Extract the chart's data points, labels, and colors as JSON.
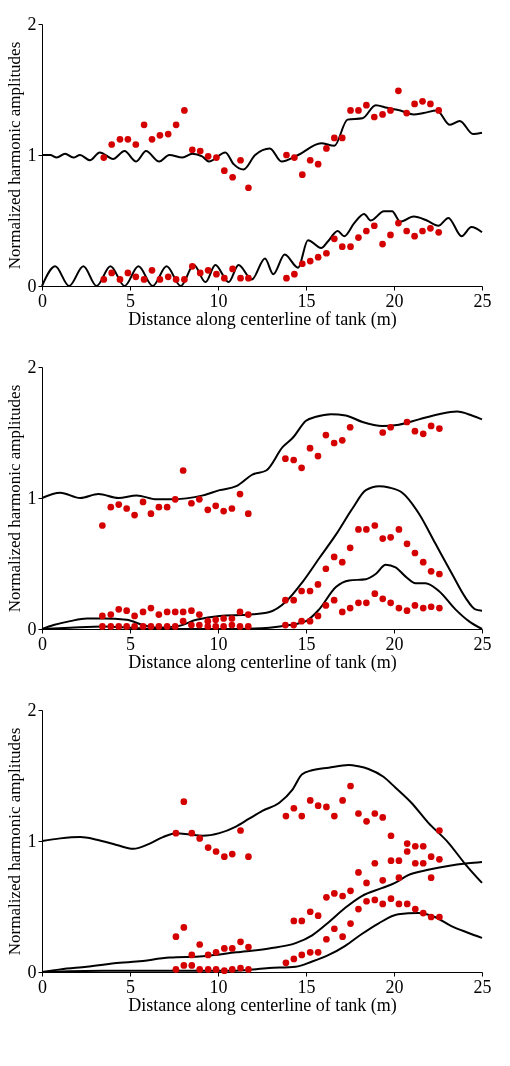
{
  "chart_data": [
    {
      "type": "line",
      "xlabel": "Distance along centerline of tank (m)",
      "ylabel": "Normalized harmonic amplitudes",
      "xlim": [
        0,
        25
      ],
      "ylim": [
        0,
        2
      ],
      "xticks": [
        0,
        5,
        10,
        15,
        20,
        25
      ],
      "yticks": [
        0,
        1,
        2
      ],
      "grid": false,
      "series": [
        {
          "type": "line",
          "color": "#000000",
          "x": [
            0,
            0.47,
            0.84,
            1.31,
            1.78,
            2.16,
            2.72,
            3.28,
            4.04,
            4.69,
            5.35,
            5.91,
            6.66,
            7.23,
            7.98,
            8.54,
            9.1,
            9.48,
            10.42,
            10.89,
            11.45,
            12.11,
            12.95,
            13.61,
            14.55,
            15.86,
            16.61,
            17.36,
            18.21,
            18.96,
            19.61,
            20.36,
            21.11,
            21.68,
            22.43,
            23.18,
            23.74,
            24.49,
            25
          ],
          "values": [
            1.0,
            1.0,
            0.98,
            1.01,
            0.98,
            1.0,
            0.96,
            1.02,
            0.97,
            1.03,
            0.95,
            1.03,
            0.95,
            1.0,
            0.98,
            1.01,
            0.99,
            0.95,
            1.02,
            0.93,
            0.89,
            1.0,
            1.05,
            0.95,
            1.0,
            1.09,
            1.07,
            1.27,
            1.28,
            1.38,
            1.36,
            1.34,
            1.31,
            1.32,
            1.34,
            1.23,
            1.26,
            1.16,
            1.17
          ]
        },
        {
          "type": "line",
          "color": "#000000",
          "x": [
            0,
            0.75,
            1.54,
            2.35,
            3.1,
            3.89,
            4.69,
            5.48,
            6.29,
            7.08,
            7.88,
            8.63,
            9.29,
            9.85,
            10.6,
            11.17,
            11.92,
            12.67,
            13.14,
            13.79,
            14.55,
            15.11,
            15.86,
            16.24,
            16.8,
            17.17,
            17.74,
            18.3,
            18.68,
            19.43,
            19.89,
            20.36,
            21.11,
            21.87,
            22.52,
            23.09,
            23.84,
            24.4,
            25
          ],
          "values": [
            0,
            0.15,
            0,
            0.15,
            0,
            0.15,
            0,
            0.15,
            0,
            0.15,
            0,
            0.16,
            0.03,
            0.16,
            0.03,
            0.16,
            0.05,
            0.21,
            0.09,
            0.24,
            0.14,
            0.35,
            0.29,
            0.34,
            0.42,
            0.38,
            0.48,
            0.55,
            0.5,
            0.57,
            0.57,
            0.49,
            0.53,
            0.5,
            0.46,
            0.52,
            0.38,
            0.45,
            0.41
          ]
        },
        {
          "type": "scatter",
          "color": "#d40000",
          "x": [
            3.51,
            3.96,
            4.43,
            4.88,
            5.33,
            5.8,
            6.25,
            6.7,
            7.17,
            7.62,
            8.09,
            8.54,
            8.99,
            9.44,
            9.91,
            10.36,
            10.83,
            11.28,
            11.73,
            13.89,
            14.34,
            14.79,
            15.24,
            15.69,
            16.16,
            16.61,
            17.06,
            17.53,
            17.98,
            18.43,
            18.88,
            19.35,
            19.8,
            20.25,
            20.72,
            21.17,
            21.62,
            22.07,
            22.54
          ],
          "values": [
            0.98,
            1.08,
            1.12,
            1.12,
            1.08,
            1.23,
            1.12,
            1.15,
            1.16,
            1.23,
            1.34,
            1.04,
            1.03,
            0.99,
            0.98,
            0.88,
            0.83,
            0.96,
            0.75,
            1.0,
            0.98,
            0.85,
            0.96,
            0.93,
            1.05,
            1.13,
            1.13,
            1.34,
            1.34,
            1.38,
            1.29,
            1.31,
            1.34,
            1.49,
            1.32,
            1.39,
            1.41,
            1.39,
            1.34
          ]
        },
        {
          "type": "scatter",
          "color": "#d40000",
          "x": [
            3.51,
            3.96,
            4.43,
            4.88,
            5.33,
            5.8,
            6.25,
            6.7,
            7.17,
            7.62,
            8.09,
            8.54,
            8.99,
            9.44,
            9.91,
            10.36,
            10.83,
            11.28,
            11.73,
            13.89,
            14.34,
            14.79,
            15.24,
            15.69,
            16.16,
            16.61,
            17.06,
            17.53,
            17.98,
            18.43,
            18.88,
            19.35,
            19.8,
            20.25,
            20.72,
            21.17,
            21.62,
            22.07,
            22.54
          ],
          "values": [
            0.05,
            0.1,
            0.05,
            0.1,
            0.07,
            0.05,
            0.12,
            0.05,
            0.07,
            0.05,
            0.05,
            0.15,
            0.1,
            0.12,
            0.09,
            0.06,
            0.13,
            0.06,
            0.06,
            0.06,
            0.09,
            0.17,
            0.19,
            0.22,
            0.25,
            0.36,
            0.3,
            0.3,
            0.37,
            0.42,
            0.46,
            0.32,
            0.39,
            0.48,
            0.42,
            0.38,
            0.42,
            0.44,
            0.41
          ]
        }
      ]
    },
    {
      "type": "line",
      "xlabel": "Distance along centerline of tank (m)",
      "ylabel": "Normalized harmonic amplitudes",
      "xlim": [
        0,
        25
      ],
      "ylim": [
        0,
        2
      ],
      "xticks": [
        0,
        5,
        10,
        15,
        20,
        25
      ],
      "yticks": [
        0,
        1,
        2
      ],
      "grid": false,
      "series": [
        {
          "type": "line",
          "color": "#000000",
          "x": [
            0,
            1.04,
            2.17,
            3.21,
            4.34,
            5.38,
            6.51,
            7.26,
            9.15,
            10.09,
            11.04,
            11.98,
            12.74,
            13.68,
            14.25,
            15.0,
            15.57,
            16.42,
            17.26,
            18.21,
            19.34,
            20.28,
            21.42,
            22.55,
            23.58,
            24.43,
            25
          ],
          "values": [
            1.0,
            1.04,
            1.0,
            1.03,
            1.0,
            1.02,
            0.99,
            0.99,
            1.02,
            1.06,
            1.09,
            1.18,
            1.21,
            1.39,
            1.46,
            1.59,
            1.62,
            1.64,
            1.63,
            1.58,
            1.55,
            1.56,
            1.6,
            1.64,
            1.66,
            1.63,
            1.6
          ]
        },
        {
          "type": "line",
          "color": "#000000",
          "x": [
            0,
            0.66,
            1.6,
            2.55,
            3.49,
            4.81,
            5.75,
            6.51,
            7.64,
            8.77,
            10.09,
            11.79,
            12.92,
            13.87,
            14.81,
            15.75,
            16.7,
            17.64,
            18.4,
            19.15,
            19.72,
            20.47,
            21.42,
            22.36,
            23.3,
            24.06,
            24.62,
            25
          ],
          "values": [
            0,
            0.03,
            0.06,
            0.08,
            0.08,
            0.07,
            0.03,
            0.01,
            0.02,
            0.07,
            0.1,
            0.11,
            0.13,
            0.21,
            0.36,
            0.54,
            0.72,
            0.92,
            1.06,
            1.09,
            1.08,
            1.04,
            0.88,
            0.65,
            0.42,
            0.24,
            0.15,
            0.14
          ]
        },
        {
          "type": "line",
          "color": "#000000",
          "x": [
            0,
            1.6,
            3.49,
            5.0,
            6.32,
            11.04,
            12.92,
            14.06,
            15.0,
            15.75,
            16.7,
            17.45,
            18.4,
            18.96,
            19.53,
            20.09,
            20.66,
            21.23,
            21.79,
            22.55,
            23.49,
            24.25,
            25
          ],
          "values": [
            0,
            0.01,
            0.02,
            0.01,
            0,
            0,
            0.01,
            0.03,
            0.06,
            0.15,
            0.32,
            0.37,
            0.38,
            0.42,
            0.49,
            0.47,
            0.4,
            0.35,
            0.35,
            0.29,
            0.15,
            0.06,
            0
          ]
        },
        {
          "type": "scatter",
          "color": "#d40000",
          "x": [
            3.43,
            3.91,
            4.36,
            4.81,
            5.26,
            5.74,
            6.19,
            6.64,
            7.11,
            7.57,
            8.02,
            8.49,
            8.94,
            9.42,
            9.87,
            10.32,
            10.79,
            11.25,
            11.72,
            13.83,
            14.3,
            14.75,
            15.23,
            15.68,
            16.13,
            16.6,
            17.06,
            17.51,
            19.36,
            19.81,
            20.74,
            21.19,
            21.66,
            22.11,
            22.58
          ],
          "values": [
            0.79,
            0.93,
            0.95,
            0.92,
            0.87,
            0.97,
            0.88,
            0.93,
            0.93,
            0.99,
            1.21,
            0.96,
            0.99,
            0.91,
            0.94,
            0.9,
            0.92,
            1.03,
            0.88,
            1.3,
            1.29,
            1.23,
            1.38,
            1.32,
            1.48,
            1.42,
            1.44,
            1.54,
            1.5,
            1.54,
            1.58,
            1.51,
            1.49,
            1.55,
            1.53
          ]
        },
        {
          "type": "scatter",
          "color": "#d40000",
          "x": [
            3.43,
            3.91,
            4.36,
            4.81,
            5.26,
            5.74,
            6.19,
            6.64,
            7.11,
            7.57,
            8.02,
            8.49,
            8.94,
            9.42,
            9.87,
            10.32,
            10.79,
            11.25,
            11.72,
            13.83,
            14.3,
            14.75,
            15.23,
            15.68,
            16.13,
            16.6,
            17.06,
            17.51,
            17.98,
            18.43,
            18.91,
            19.36,
            19.81,
            20.28,
            20.74,
            21.19,
            21.66,
            22.11,
            22.58
          ],
          "values": [
            0.1,
            0.11,
            0.15,
            0.14,
            0.1,
            0.13,
            0.16,
            0.11,
            0.13,
            0.13,
            0.13,
            0.14,
            0.11,
            0.06,
            0.07,
            0.08,
            0.08,
            0.13,
            0.11,
            0.22,
            0.22,
            0.29,
            0.29,
            0.34,
            0.46,
            0.55,
            0.51,
            0.62,
            0.76,
            0.76,
            0.79,
            0.69,
            0.7,
            0.76,
            0.65,
            0.58,
            0.51,
            0.44,
            0.42
          ]
        },
        {
          "type": "scatter",
          "color": "#d40000",
          "x": [
            3.43,
            3.91,
            4.36,
            4.81,
            5.26,
            5.74,
            6.19,
            6.64,
            7.11,
            7.57,
            8.02,
            8.49,
            8.94,
            9.42,
            9.87,
            10.32,
            10.79,
            11.25,
            11.72,
            13.83,
            14.3,
            14.75,
            15.23,
            15.68,
            16.13,
            16.6,
            17.06,
            17.51,
            17.98,
            18.43,
            18.91,
            19.36,
            19.81,
            20.28,
            20.74,
            21.19,
            21.66,
            22.11,
            22.58
          ],
          "values": [
            0.02,
            0.02,
            0.02,
            0.02,
            0.02,
            0.02,
            0.02,
            0.02,
            0.02,
            0.02,
            0.06,
            0.03,
            0.03,
            0.02,
            0.02,
            0.02,
            0.03,
            0.02,
            0.02,
            0.03,
            0.03,
            0.06,
            0.06,
            0.1,
            0.18,
            0.22,
            0.13,
            0.16,
            0.2,
            0.2,
            0.27,
            0.23,
            0.2,
            0.16,
            0.14,
            0.18,
            0.16,
            0.17,
            0.16
          ]
        }
      ]
    },
    {
      "type": "line",
      "xlabel": "Distance along centerline of tank (m)",
      "ylabel": "Normalized harmonic amplitudes",
      "xlim": [
        0,
        25
      ],
      "ylim": [
        0,
        2
      ],
      "xticks": [
        0,
        5,
        10,
        15,
        20,
        25
      ],
      "yticks": [
        0,
        1,
        2
      ],
      "grid": false,
      "series": [
        {
          "type": "line",
          "color": "#000000",
          "x": [
            0,
            1.04,
            2.17,
            3.11,
            4.24,
            5.18,
            6.12,
            6.87,
            7.63,
            8.38,
            9.13,
            10.08,
            11.02,
            11.77,
            12.52,
            13.47,
            14.22,
            14.78,
            15.35,
            16.29,
            17.42,
            17.98,
            18.55,
            19.4,
            20.06,
            21.0,
            21.94,
            23.07,
            24.01,
            25
          ],
          "values": [
            1.0,
            1.02,
            1.03,
            1.01,
            0.97,
            0.94,
            0.98,
            1.03,
            1.06,
            1.05,
            1.04,
            1.06,
            1.11,
            1.17,
            1.23,
            1.29,
            1.39,
            1.51,
            1.54,
            1.56,
            1.58,
            1.57,
            1.55,
            1.49,
            1.41,
            1.29,
            1.14,
            0.99,
            0.83,
            0.68
          ]
        },
        {
          "type": "line",
          "color": "#000000",
          "x": [
            0,
            1.04,
            2.54,
            4.43,
            5.37,
            7.25,
            9.13,
            11.02,
            12.9,
            14.41,
            15.35,
            16.29,
            17.23,
            18.17,
            19.3,
            20.06,
            20.81,
            21.94,
            23.07,
            24.2,
            25
          ],
          "values": [
            0,
            0.02,
            0.04,
            0.07,
            0.08,
            0.11,
            0.12,
            0.15,
            0.18,
            0.22,
            0.28,
            0.38,
            0.49,
            0.58,
            0.64,
            0.68,
            0.74,
            0.78,
            0.81,
            0.83,
            0.84
          ]
        },
        {
          "type": "line",
          "color": "#000000",
          "x": [
            0,
            3.48,
            7.25,
            11.02,
            12.9,
            14.41,
            15.35,
            16.29,
            17.23,
            18.17,
            19.11,
            20.24,
            21.37,
            22.32,
            23.26,
            24.2,
            25
          ],
          "values": [
            0,
            0.01,
            0.01,
            0.01,
            0.03,
            0.04,
            0.08,
            0.13,
            0.2,
            0.29,
            0.37,
            0.44,
            0.45,
            0.42,
            0.35,
            0.3,
            0.26
          ]
        },
        {
          "type": "scatter",
          "color": "#d40000",
          "x": [
            7.61,
            8.06,
            8.51,
            8.96,
            9.44,
            9.89,
            10.36,
            10.81,
            11.28,
            11.73,
            13.86,
            14.31,
            14.76,
            15.24,
            15.69,
            16.16,
            16.61,
            17.08,
            17.53,
            17.98,
            18.44,
            18.91,
            19.36,
            19.83,
            20.75,
            21.21,
            21.66,
            22.58
          ],
          "values": [
            1.06,
            1.3,
            1.06,
            1.02,
            0.95,
            0.92,
            0.88,
            0.9,
            1.08,
            0.88,
            1.19,
            1.25,
            1.19,
            1.31,
            1.27,
            1.26,
            1.19,
            1.31,
            1.42,
            1.21,
            1.15,
            1.21,
            1.18,
            1.04,
            0.98,
            0.96,
            0.96,
            1.08
          ]
        },
        {
          "type": "scatter",
          "color": "#d40000",
          "x": [
            17.98,
            18.44,
            18.91,
            19.36,
            19.83,
            20.28,
            20.28,
            20.75,
            21.21,
            21.66,
            22.11,
            22.11,
            22.58
          ],
          "values": [
            0.76,
            0.68,
            0.83,
            0.7,
            0.85,
            0.85,
            0.72,
            0.92,
            0.83,
            0.83,
            0.88,
            0.72,
            0.86
          ]
        },
        {
          "type": "scatter",
          "color": "#d40000",
          "x": [
            16.16,
            16.61,
            17.08,
            17.53,
            17.98,
            18.44,
            18.91,
            19.36,
            19.83,
            20.28,
            20.75,
            21.21,
            21.66,
            22.11,
            22.58
          ],
          "values": [
            0.57,
            0.6,
            0.58,
            0.62,
            0.48,
            0.54,
            0.55,
            0.52,
            0.56,
            0.52,
            0.52,
            0.48,
            0.45,
            0.42,
            0.42
          ]
        },
        {
          "type": "scatter",
          "color": "#d40000",
          "x": [
            14.31,
            14.76,
            15.24,
            15.69,
            16.16,
            16.61,
            17.08,
            17.53
          ],
          "values": [
            0.39,
            0.39,
            0.46,
            0.43,
            0.25,
            0.33,
            0.27,
            0.37
          ]
        },
        {
          "type": "scatter",
          "color": "#d40000",
          "x": [
            13.86,
            14.31,
            14.76,
            15.24,
            15.69
          ],
          "values": [
            0.07,
            0.1,
            0.13,
            0.15,
            0.15
          ]
        },
        {
          "type": "scatter",
          "color": "#d40000",
          "x": [
            7.61,
            8.06,
            8.51,
            8.96,
            9.44,
            9.89,
            10.36,
            10.81,
            11.28,
            11.73
          ],
          "values": [
            0.27,
            0.34,
            0.13,
            0.21,
            0.13,
            0.15,
            0.18,
            0.18,
            0.23,
            0.19
          ]
        },
        {
          "type": "scatter",
          "color": "#d40000",
          "x": [
            7.61,
            8.06,
            8.51,
            8.96,
            9.44,
            9.89,
            10.36,
            10.81,
            11.28,
            11.73
          ],
          "values": [
            0.02,
            0.05,
            0.05,
            0.02,
            0.02,
            0.02,
            0.01,
            0.02,
            0.03,
            0.02
          ]
        }
      ]
    }
  ]
}
